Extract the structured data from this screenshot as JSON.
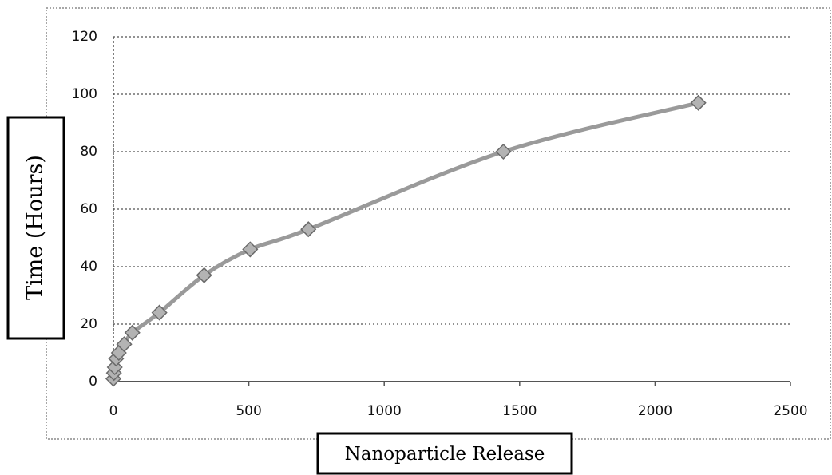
{
  "chart_data": {
    "type": "line",
    "xlabel": "Nanoparticle Release",
    "ylabel": "Time (Hours)",
    "xlim": [
      0,
      2500
    ],
    "ylim": [
      0,
      120
    ],
    "x_ticks": [
      "0",
      "500",
      "1000",
      "1500",
      "2000",
      "2500"
    ],
    "y_ticks": [
      "0",
      "20",
      "40",
      "60",
      "80",
      "100",
      "120"
    ],
    "grid": "horizontal dotted",
    "legend": "none",
    "series": [
      {
        "marker": "diamond",
        "color": "#9a9a9a",
        "points": [
          {
            "x": 0,
            "y": 1
          },
          {
            "x": 2,
            "y": 3
          },
          {
            "x": 5,
            "y": 5
          },
          {
            "x": 10,
            "y": 8
          },
          {
            "x": 20,
            "y": 10
          },
          {
            "x": 40,
            "y": 13
          },
          {
            "x": 70,
            "y": 17
          },
          {
            "x": 170,
            "y": 24
          },
          {
            "x": 335,
            "y": 37
          },
          {
            "x": 505,
            "y": 46
          },
          {
            "x": 720,
            "y": 53
          },
          {
            "x": 1440,
            "y": 80
          },
          {
            "x": 2160,
            "y": 97
          }
        ]
      }
    ]
  }
}
